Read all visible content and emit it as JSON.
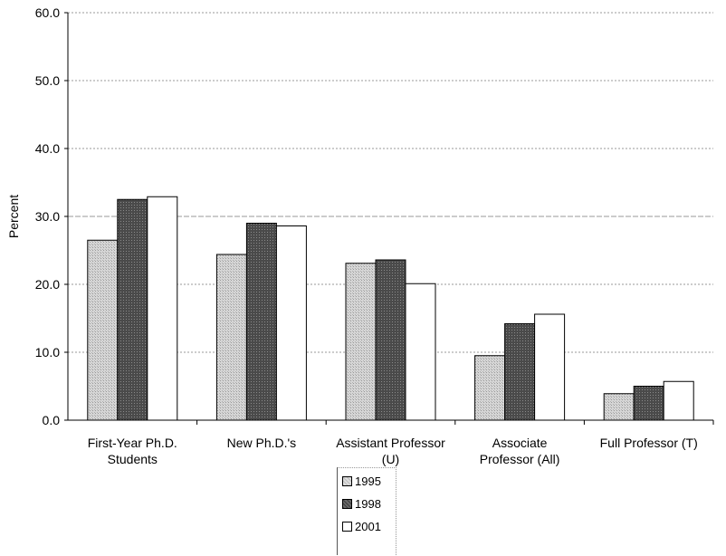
{
  "chart_data": {
    "type": "bar",
    "title": "",
    "xlabel": "",
    "ylabel": "Percent",
    "ylim": [
      0,
      60
    ],
    "yticks": [
      "0.0",
      "10.0",
      "20.0",
      "30.0",
      "40.0",
      "50.0",
      "60.0"
    ],
    "grid": true,
    "legend_position": "bottom-center",
    "categories": [
      [
        "First-Year Ph.D.",
        "Students"
      ],
      [
        "New Ph.D.'s"
      ],
      [
        "Assistant Professor",
        "(U)"
      ],
      [
        "Associate",
        "Professor (All)"
      ],
      [
        "Full Professor (T)"
      ]
    ],
    "series": [
      {
        "name": "1995",
        "values": [
          26.5,
          24.4,
          23.1,
          9.5,
          3.9
        ],
        "color": "#d2d2d2"
      },
      {
        "name": "1998",
        "values": [
          32.5,
          29.0,
          23.6,
          14.2,
          5.0
        ],
        "color": "#555555"
      },
      {
        "name": "2001",
        "values": [
          32.9,
          28.6,
          20.1,
          15.6,
          5.7
        ],
        "color": "#ffffff"
      }
    ]
  }
}
